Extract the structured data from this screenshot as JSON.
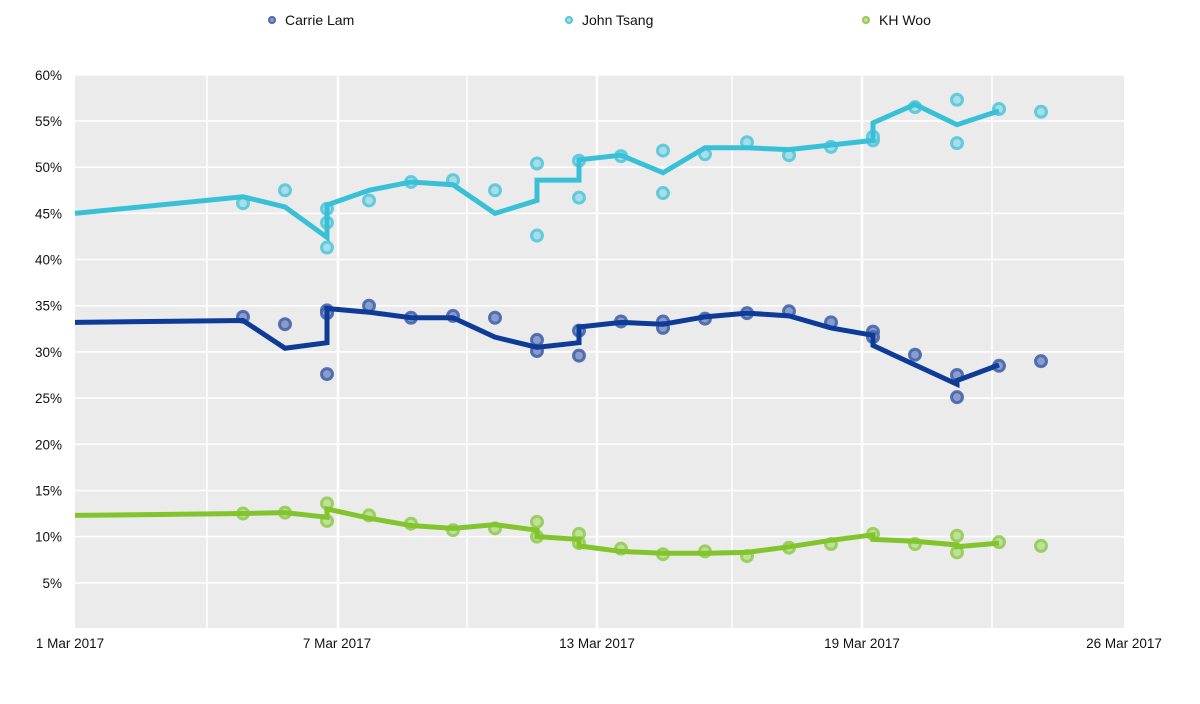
{
  "chart_data": {
    "type": "line",
    "title": "",
    "xlabel": "",
    "ylabel": "",
    "ylim": [
      0,
      60
    ],
    "xlim": [
      "2017-03-01",
      "2017-03-26"
    ],
    "grid": true,
    "legend_position": "top",
    "y_ticks": [
      "5%",
      "10%",
      "15%",
      "20%",
      "25%",
      "30%",
      "35%",
      "40%",
      "45%",
      "50%",
      "55%",
      "60%"
    ],
    "x_ticks": [
      "1 Mar 2017",
      "7 Mar 2017",
      "13 Mar 2017",
      "19 Mar 2017",
      "26 Mar 2017"
    ],
    "series": [
      {
        "name": "Carrie Lam",
        "color": "#0e3b97",
        "line": [
          [
            1,
            33.2
          ],
          [
            5,
            33.4
          ],
          [
            6,
            30.4
          ],
          [
            7,
            31.0
          ],
          [
            7,
            34.7
          ],
          [
            8,
            34.3
          ],
          [
            9,
            33.7
          ],
          [
            10,
            33.7
          ],
          [
            11,
            31.6
          ],
          [
            12,
            30.5
          ],
          [
            13,
            31.0
          ],
          [
            13,
            32.7
          ],
          [
            14,
            33.2
          ],
          [
            15,
            33.0
          ],
          [
            16,
            33.8
          ],
          [
            17,
            34.2
          ],
          [
            18,
            33.9
          ],
          [
            19,
            32.6
          ],
          [
            20,
            31.8
          ],
          [
            20,
            30.7
          ],
          [
            21,
            28.6
          ],
          [
            22,
            26.5
          ],
          [
            22,
            26.9
          ],
          [
            23,
            28.6
          ]
        ],
        "points": [
          [
            5,
            33.8
          ],
          [
            6,
            33.0
          ],
          [
            7,
            34.5
          ],
          [
            7,
            34.2
          ],
          [
            7,
            27.6
          ],
          [
            8,
            35.0
          ],
          [
            9,
            33.7
          ],
          [
            10,
            33.9
          ],
          [
            11,
            33.7
          ],
          [
            12,
            31.3
          ],
          [
            12,
            30.1
          ],
          [
            13,
            32.3
          ],
          [
            13,
            29.6
          ],
          [
            14,
            33.3
          ],
          [
            15,
            33.3
          ],
          [
            15,
            32.6
          ],
          [
            16,
            33.6
          ],
          [
            17,
            34.2
          ],
          [
            18,
            34.4
          ],
          [
            19,
            33.2
          ],
          [
            20,
            32.2
          ],
          [
            20,
            31.6
          ],
          [
            21,
            29.7
          ],
          [
            22,
            27.5
          ],
          [
            22,
            25.1
          ],
          [
            23,
            28.5
          ],
          [
            24,
            29.0
          ]
        ]
      },
      {
        "name": "John Tsang",
        "color": "#38c1d6",
        "line": [
          [
            1,
            45.0
          ],
          [
            5,
            46.8
          ],
          [
            6,
            45.7
          ],
          [
            7,
            42.4
          ],
          [
            7,
            45.9
          ],
          [
            8,
            47.5
          ],
          [
            9,
            48.4
          ],
          [
            10,
            48.1
          ],
          [
            11,
            45.0
          ],
          [
            12,
            46.4
          ],
          [
            12,
            48.6
          ],
          [
            13,
            48.6
          ],
          [
            13,
            50.8
          ],
          [
            14,
            51.3
          ],
          [
            15,
            49.4
          ],
          [
            16,
            52.1
          ],
          [
            17,
            52.1
          ],
          [
            18,
            51.9
          ],
          [
            19,
            52.4
          ],
          [
            20,
            52.9
          ],
          [
            20,
            54.8
          ],
          [
            21,
            56.8
          ],
          [
            22,
            54.6
          ],
          [
            23,
            56.1
          ]
        ],
        "points": [
          [
            5,
            46.1
          ],
          [
            6,
            47.5
          ],
          [
            7,
            45.5
          ],
          [
            7,
            44.0
          ],
          [
            7,
            41.3
          ],
          [
            8,
            46.4
          ],
          [
            9,
            48.4
          ],
          [
            10,
            48.6
          ],
          [
            11,
            47.5
          ],
          [
            12,
            50.4
          ],
          [
            12,
            42.6
          ],
          [
            13,
            50.7
          ],
          [
            13,
            46.7
          ],
          [
            14,
            51.2
          ],
          [
            15,
            51.8
          ],
          [
            15,
            47.2
          ],
          [
            16,
            51.4
          ],
          [
            17,
            52.7
          ],
          [
            18,
            51.3
          ],
          [
            19,
            52.2
          ],
          [
            20,
            52.9
          ],
          [
            20,
            53.3
          ],
          [
            21,
            56.5
          ],
          [
            22,
            57.3
          ],
          [
            22,
            52.6
          ],
          [
            23,
            56.3
          ],
          [
            24,
            56.0
          ]
        ]
      },
      {
        "name": "KH Woo",
        "color": "#82c42c",
        "line": [
          [
            1,
            12.3
          ],
          [
            5,
            12.5
          ],
          [
            6,
            12.6
          ],
          [
            7,
            12.1
          ],
          [
            7,
            13.0
          ],
          [
            8,
            12.0
          ],
          [
            9,
            11.2
          ],
          [
            10,
            10.9
          ],
          [
            11,
            11.3
          ],
          [
            12,
            10.7
          ],
          [
            12,
            10.0
          ],
          [
            13,
            9.7
          ],
          [
            13,
            9.0
          ],
          [
            14,
            8.4
          ],
          [
            15,
            8.2
          ],
          [
            16,
            8.2
          ],
          [
            17,
            8.3
          ],
          [
            18,
            8.9
          ],
          [
            19,
            9.6
          ],
          [
            20,
            10.2
          ],
          [
            20,
            9.7
          ],
          [
            21,
            9.5
          ],
          [
            22,
            9.1
          ],
          [
            22,
            8.9
          ],
          [
            23,
            9.3
          ]
        ],
        "points": [
          [
            5,
            12.5
          ],
          [
            6,
            12.6
          ],
          [
            7,
            13.6
          ],
          [
            7,
            11.7
          ],
          [
            8,
            12.3
          ],
          [
            9,
            11.4
          ],
          [
            10,
            10.7
          ],
          [
            11,
            10.9
          ],
          [
            12,
            11.6
          ],
          [
            12,
            10.0
          ],
          [
            13,
            10.3
          ],
          [
            13,
            9.3
          ],
          [
            14,
            8.7
          ],
          [
            15,
            8.1
          ],
          [
            16,
            8.4
          ],
          [
            17,
            7.9
          ],
          [
            18,
            8.8
          ],
          [
            19,
            9.2
          ],
          [
            20,
            10.3
          ],
          [
            21,
            9.2
          ],
          [
            22,
            10.1
          ],
          [
            22,
            8.3
          ],
          [
            23,
            9.4
          ],
          [
            24,
            9.0
          ]
        ]
      }
    ]
  }
}
